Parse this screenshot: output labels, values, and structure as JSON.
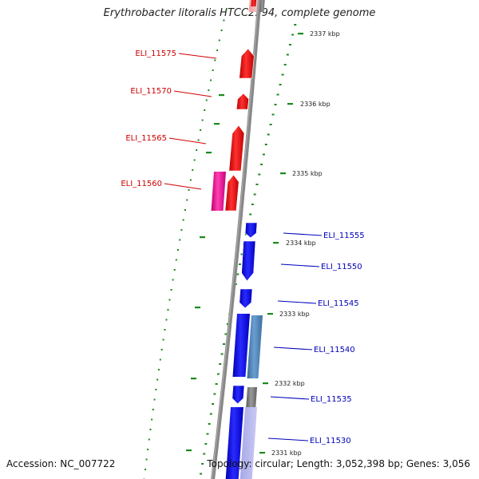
{
  "header": {
    "title": "Erythrobacter litoralis HTCC2594, complete genome"
  },
  "footer": {
    "accession": "Accession: NC_007722",
    "topology": "Topology: circular; Length: 3,052,398 bp; Genes: 3,056"
  },
  "colors": {
    "strand_forward": "#ee0000",
    "strand_forward_alt": "#ee1199",
    "strand_reverse": "#0000ee",
    "strand_reverse_alt": "#4a7fb0",
    "unannotated": "#808080",
    "backbone": "#888888",
    "ticks": "#1b8a1b"
  },
  "scale_labels": [
    "2337 kbp",
    "2336 kbp",
    "2335 kbp",
    "2334 kbp",
    "2333 kbp",
    "2332 kbp",
    "2331 kbp"
  ],
  "genes": [
    {
      "locus": "ELI_11575",
      "strand": "forward"
    },
    {
      "locus": "ELI_11570",
      "strand": "forward"
    },
    {
      "locus": "ELI_11565",
      "strand": "forward"
    },
    {
      "locus": "ELI_11560",
      "strand": "forward"
    },
    {
      "locus": "ELI_11555",
      "strand": "reverse"
    },
    {
      "locus": "ELI_11550",
      "strand": "reverse"
    },
    {
      "locus": "ELI_11545",
      "strand": "reverse"
    },
    {
      "locus": "ELI_11540",
      "strand": "reverse"
    },
    {
      "locus": "ELI_11535",
      "strand": "reverse"
    },
    {
      "locus": "ELI_11530",
      "strand": "reverse"
    }
  ]
}
